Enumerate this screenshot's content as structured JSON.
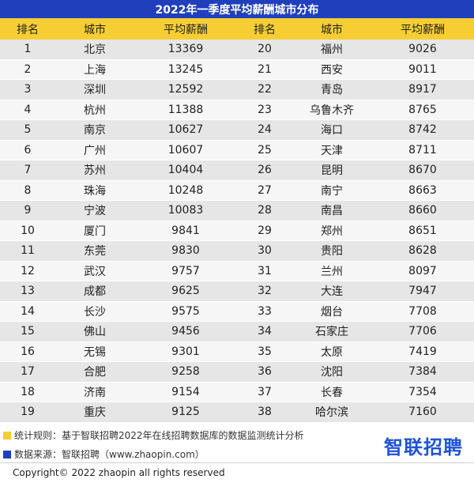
{
  "title": "2022年一季度平均薪酬城市分布",
  "headers": [
    "排名",
    "城市",
    "平均薪酬",
    "排名",
    "城市",
    "平均薪酬"
  ],
  "left_rows": [
    {
      "rank": "1",
      "city": "北京",
      "salary": "13369"
    },
    {
      "rank": "2",
      "city": "上海",
      "salary": "13245"
    },
    {
      "rank": "3",
      "city": "深圳",
      "salary": "12592"
    },
    {
      "rank": "4",
      "city": "杭州",
      "salary": "11388"
    },
    {
      "rank": "5",
      "city": "南京",
      "salary": "10627"
    },
    {
      "rank": "6",
      "city": "广州",
      "salary": "10607"
    },
    {
      "rank": "7",
      "city": "苏州",
      "salary": "10404"
    },
    {
      "rank": "8",
      "city": "珠海",
      "salary": "10248"
    },
    {
      "rank": "9",
      "city": "宁波",
      "salary": "10083"
    },
    {
      "rank": "10",
      "city": "厦门",
      "salary": "9841"
    },
    {
      "rank": "11",
      "city": "东莞",
      "salary": "9830"
    },
    {
      "rank": "12",
      "city": "武汉",
      "salary": "9757"
    },
    {
      "rank": "13",
      "city": "成都",
      "salary": "9625"
    },
    {
      "rank": "14",
      "city": "长沙",
      "salary": "9575"
    },
    {
      "rank": "15",
      "city": "佛山",
      "salary": "9456"
    },
    {
      "rank": "16",
      "city": "无锡",
      "salary": "9301"
    },
    {
      "rank": "17",
      "city": "合肥",
      "salary": "9258"
    },
    {
      "rank": "18",
      "city": "济南",
      "salary": "9154"
    },
    {
      "rank": "19",
      "city": "重庆",
      "salary": "9125"
    }
  ],
  "right_rows": [
    {
      "rank": "20",
      "city": "福州",
      "salary": "9026"
    },
    {
      "rank": "21",
      "city": "西安",
      "salary": "9011"
    },
    {
      "rank": "22",
      "city": "青岛",
      "salary": "8917"
    },
    {
      "rank": "23",
      "city": "乌鲁木齐",
      "salary": "8765"
    },
    {
      "rank": "24",
      "city": "海口",
      "salary": "8742"
    },
    {
      "rank": "25",
      "city": "天津",
      "salary": "8711"
    },
    {
      "rank": "26",
      "city": "昆明",
      "salary": "8670"
    },
    {
      "rank": "27",
      "city": "南宁",
      "salary": "8663"
    },
    {
      "rank": "28",
      "city": "南昌",
      "salary": "8660"
    },
    {
      "rank": "29",
      "city": "郑州",
      "salary": "8651"
    },
    {
      "rank": "30",
      "city": "贵阳",
      "salary": "8628"
    },
    {
      "rank": "31",
      "city": "兰州",
      "salary": "8097"
    },
    {
      "rank": "32",
      "city": "大连",
      "salary": "7947"
    },
    {
      "rank": "33",
      "city": "烟台",
      "salary": "7708"
    },
    {
      "rank": "34",
      "city": "石家庄",
      "salary": "7706"
    },
    {
      "rank": "35",
      "city": "太原",
      "salary": "7419"
    },
    {
      "rank": "36",
      "city": "沈阳",
      "salary": "7384"
    },
    {
      "rank": "37",
      "city": "长春",
      "salary": "7354"
    },
    {
      "rank": "38",
      "city": "哈尔滨",
      "salary": "7160"
    }
  ],
  "notes": {
    "rule": "统计规则：基于智联招聘2022年在线招聘数据库的数据监测统计分析",
    "source": "数据来源：智联招聘（www.zhaopin.com）"
  },
  "logo": "智联招聘",
  "copyright": "Copyright© 2022 zhaopin all rights reserved",
  "colors": {
    "title_bg": "#1f3fbd",
    "header_bg": "#f6ce33",
    "row_odd": "#e6e6e6",
    "row_even": "#f6f6f6",
    "logo": "#1f53d6"
  }
}
